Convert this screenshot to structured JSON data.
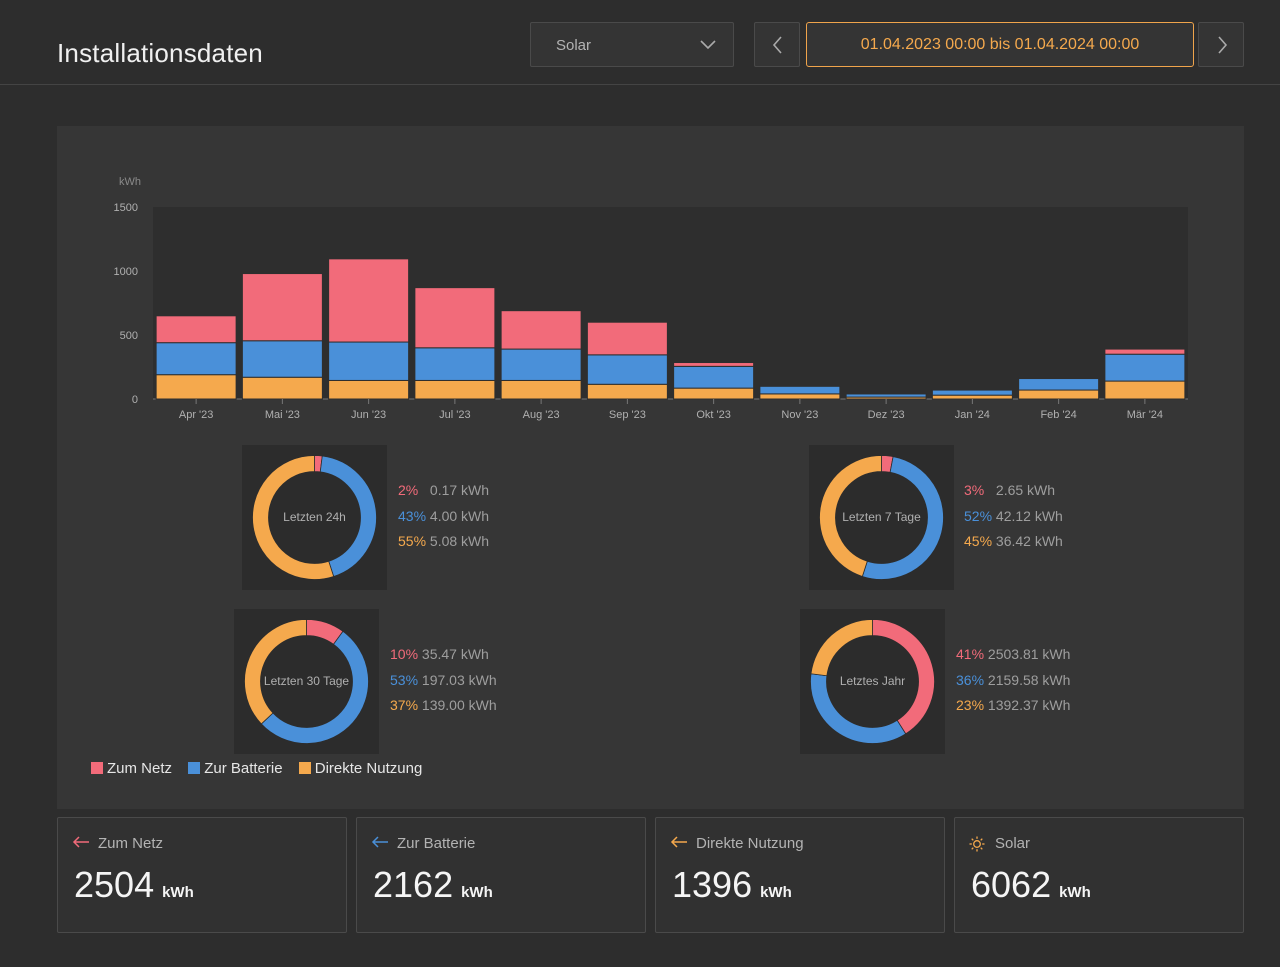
{
  "page": {
    "title": "Installationsdaten"
  },
  "filter": {
    "selected": "Solar"
  },
  "date_range": "01.04.2023 00:00 bis 01.04.2024 00:00",
  "colors": {
    "zum_netz": "#f26b7a",
    "zur_batterie": "#4a90d9",
    "direkte_nutzung": "#f5a94d"
  },
  "chart_data": {
    "type": "bar",
    "stacked": true,
    "ylabel": "kWh",
    "ylim": [
      0,
      1500
    ],
    "yticks": [
      "0",
      "500",
      "1000",
      "1500"
    ],
    "categories": [
      "Apr '23",
      "Mai '23",
      "Jun '23",
      "Jul '23",
      "Aug '23",
      "Sep '23",
      "Okt '23",
      "Nov '23",
      "Dez '23",
      "Jan '24",
      "Feb '24",
      "Mär '24"
    ],
    "series": [
      {
        "name": "Direkte Nutzung",
        "color": "#f5a94d",
        "values": [
          190,
          170,
          145,
          145,
          145,
          115,
          85,
          40,
          15,
          30,
          70,
          140
        ]
      },
      {
        "name": "Zur Batterie",
        "color": "#4a90d9",
        "values": [
          250,
          285,
          300,
          255,
          245,
          230,
          170,
          60,
          25,
          40,
          90,
          210
        ]
      },
      {
        "name": "Zum Netz",
        "color": "#f26b7a",
        "values": [
          210,
          525,
          650,
          470,
          300,
          255,
          30,
          5,
          5,
          5,
          5,
          40
        ]
      }
    ],
    "legend_position": "bottom-left",
    "grid": false
  },
  "donuts": [
    {
      "label": "Letzten 24h",
      "items": [
        {
          "pct": "2%",
          "value": "0.17 kWh"
        },
        {
          "pct": "43%",
          "value": "4.00 kWh"
        },
        {
          "pct": "55%",
          "value": "5.08 kWh"
        }
      ],
      "fractions": [
        0.02,
        0.43,
        0.55
      ]
    },
    {
      "label": "Letzten 7 Tage",
      "items": [
        {
          "pct": "3%",
          "value": "2.65 kWh"
        },
        {
          "pct": "52%",
          "value": "42.12 kWh"
        },
        {
          "pct": "45%",
          "value": "36.42 kWh"
        }
      ],
      "fractions": [
        0.03,
        0.52,
        0.45
      ]
    },
    {
      "label": "Letzten 30 Tage",
      "items": [
        {
          "pct": "10%",
          "value": "35.47 kWh"
        },
        {
          "pct": "53%",
          "value": "197.03 kWh"
        },
        {
          "pct": "37%",
          "value": "139.00 kWh"
        }
      ],
      "fractions": [
        0.1,
        0.53,
        0.37
      ]
    },
    {
      "label": "Letztes Jahr",
      "items": [
        {
          "pct": "41%",
          "value": "2503.81 kWh"
        },
        {
          "pct": "36%",
          "value": "2159.58 kWh"
        },
        {
          "pct": "23%",
          "value": "1392.37 kWh"
        }
      ],
      "fractions": [
        0.41,
        0.36,
        0.23
      ]
    }
  ],
  "legend": {
    "zum_netz": "Zum Netz",
    "zur_batterie": "Zur Batterie",
    "direkte_nutzung": "Direkte Nutzung"
  },
  "cards": [
    {
      "label": "Zum Netz",
      "value": "2504",
      "unit": "kWh",
      "icon": "arrow-left-icon"
    },
    {
      "label": "Zur Batterie",
      "value": "2162",
      "unit": "kWh",
      "icon": "arrow-left-icon"
    },
    {
      "label": "Direkte Nutzung",
      "value": "1396",
      "unit": "kWh",
      "icon": "arrow-left-icon"
    },
    {
      "label": "Solar",
      "value": "6062",
      "unit": "kWh",
      "icon": "sun-icon"
    }
  ]
}
